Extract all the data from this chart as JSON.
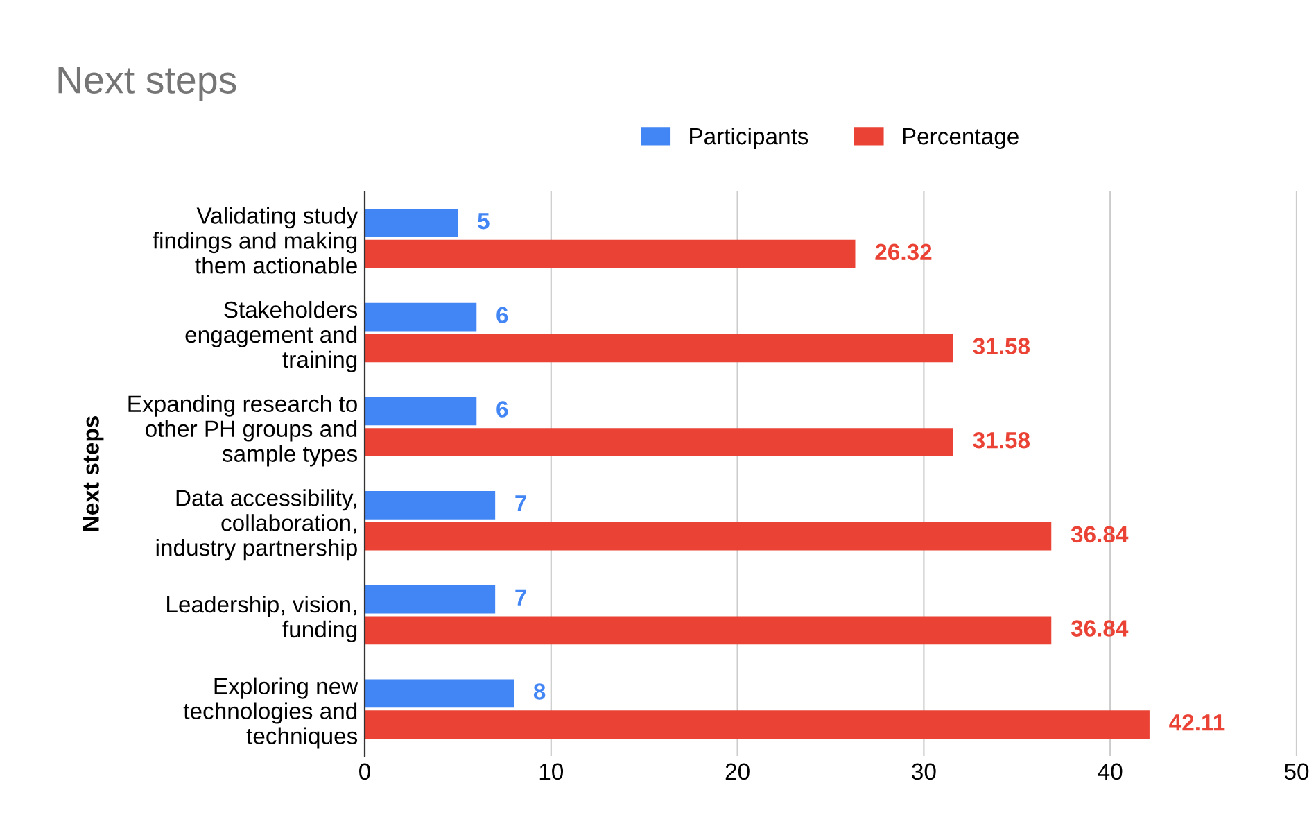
{
  "chart_data": {
    "type": "bar",
    "orientation": "horizontal",
    "title": "Next steps",
    "ylabel": "Next steps",
    "categories": [
      "Validating study findings and making them actionable",
      "Stakeholders engagement and training",
      "Expanding research to other PH groups and sample types",
      "Data accessibility, collaboration, industry partnership",
      "Leadership, vision, funding",
      "Exploring new technologies and techniques"
    ],
    "series": [
      {
        "name": "Participants",
        "color": "#4285f4",
        "values": [
          5,
          6,
          6,
          7,
          7,
          8
        ]
      },
      {
        "name": "Percentage",
        "color": "#ea4335",
        "values": [
          26.32,
          31.58,
          31.58,
          36.84,
          36.84,
          42.11
        ]
      }
    ],
    "xlim": [
      0,
      50
    ],
    "xticks": [
      0,
      10,
      20,
      30,
      40,
      50
    ],
    "grid": "x",
    "legend": "top",
    "data_labels": true
  }
}
